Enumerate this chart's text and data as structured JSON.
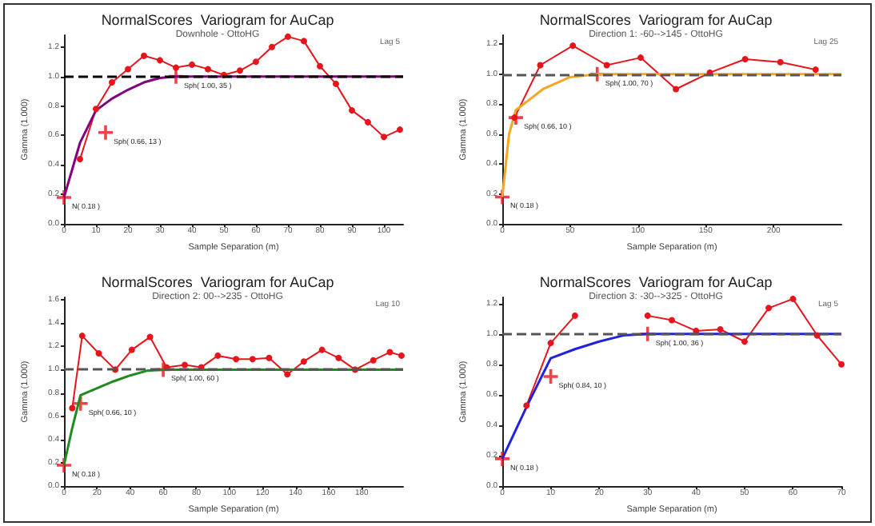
{
  "chart_data": [
    {
      "type": "line",
      "title": "NormalScores  Variogram for AuCap",
      "subtitle": "Downhole - OttoHG",
      "xlabel": "Sample Separation (m)",
      "ylabel": "Gamma (1.000)",
      "xlim": [
        0,
        106
      ],
      "xticks": [
        0,
        10,
        20,
        30,
        40,
        50,
        60,
        70,
        80,
        90,
        100
      ],
      "ylim": [
        0,
        1.28
      ],
      "yticks": [
        {
          "value": 0,
          "label": "0.0"
        },
        {
          "value": 0.2,
          "label": "0.2"
        },
        {
          "value": 0.4,
          "label": "0.4"
        },
        {
          "value": 0.6,
          "label": "0.6"
        },
        {
          "value": 0.8,
          "label": "0.8"
        },
        {
          "value": 1,
          "label": "1.0"
        },
        {
          "value": 1.2,
          "label": "1.2"
        }
      ],
      "grid": false,
      "series": [
        {
          "color": "#e8141c",
          "marker": "circle",
          "line_style": "solid",
          "x": [
            5,
            10,
            15,
            20,
            25,
            30,
            35,
            40,
            45,
            50,
            55,
            60,
            65,
            70,
            75,
            80,
            85,
            90,
            95,
            100,
            105
          ],
          "values": [
            0.44,
            0.78,
            0.96,
            1.05,
            1.14,
            1.11,
            1.06,
            1.08,
            1.05,
            1.01,
            1.04,
            1.1,
            1.2,
            1.27,
            1.24,
            1.07,
            0.95,
            0.77,
            0.69,
            0.59,
            0.64
          ]
        },
        {
          "color": "#800080",
          "marker": "none",
          "line_style": "solid",
          "x": [
            0,
            5,
            10,
            15,
            20,
            25,
            30,
            35,
            106
          ],
          "values": [
            0.18,
            0.55,
            0.77,
            0.85,
            0.91,
            0.96,
            0.99,
            1.0,
            1.0
          ]
        },
        {
          "type": "scatter",
          "color": "#e8141c",
          "marker": "cross",
          "x": [
            0,
            13,
            35
          ],
          "values": [
            0.18,
            0.62,
            1.0
          ]
        }
      ],
      "ref_lines": [
        {
          "axis": "y",
          "value": 1,
          "color": "#000000",
          "line_style": "dashed"
        }
      ],
      "annotations": [
        {
          "text": "N( 0.18 )",
          "x": 0,
          "y": 0.18
        },
        {
          "text": "Sph( 0.66, 13 )",
          "x": 13,
          "y": 0.62
        },
        {
          "text": "Sph( 1.00, 35 )",
          "x": 35,
          "y": 1.0
        },
        "Lag 5"
      ]
    },
    {
      "type": "line",
      "title": "NormalScores  Variogram for AuCap",
      "subtitle": "Direction 1: -60-->145 - OttoHG",
      "xlabel": "Sample Separation (m)",
      "ylabel": "Gamma (1.000)",
      "xlim": [
        0,
        250
      ],
      "xticks": [
        0,
        50,
        100,
        150,
        200
      ],
      "ylim": [
        0,
        1.26
      ],
      "yticks": [
        {
          "value": 0,
          "label": "0.0"
        },
        {
          "value": 0.2,
          "label": "0.2"
        },
        {
          "value": 0.4,
          "label": "0.4"
        },
        {
          "value": 0.6,
          "label": "0.6"
        },
        {
          "value": 0.8,
          "label": "0.8"
        },
        {
          "value": 1,
          "label": "1.0"
        },
        {
          "value": 1.2,
          "label": "1.2"
        }
      ],
      "grid": false,
      "series": [
        {
          "color": "#e8141c",
          "marker": "circle",
          "line_style": "solid",
          "x": [
            9,
            28,
            52,
            77,
            102,
            128,
            153,
            179,
            205,
            231
          ],
          "values": [
            0.71,
            1.06,
            1.19,
            1.06,
            1.11,
            0.9,
            1.01,
            1.1,
            1.08,
            1.03
          ]
        },
        {
          "color": "#f5a623",
          "marker": "none",
          "line_style": "solid",
          "x": [
            0,
            5,
            10,
            20,
            30,
            50,
            70,
            250
          ],
          "values": [
            0.18,
            0.6,
            0.76,
            0.83,
            0.9,
            0.98,
            1.0,
            1.0
          ]
        },
        {
          "type": "scatter",
          "color": "#e8141c",
          "marker": "cross",
          "x": [
            0,
            10,
            70
          ],
          "values": [
            0.18,
            0.71,
            1.0
          ]
        }
      ],
      "ref_lines": [
        {
          "axis": "y",
          "value": 1,
          "color": "#555555",
          "line_style": "dashed"
        }
      ],
      "annotations": [
        {
          "text": "N( 0.18 )",
          "x": 0,
          "y": 0.18
        },
        {
          "text": "Sph( 0.66, 10 )",
          "x": 10,
          "y": 0.71
        },
        {
          "text": "Sph( 1.00, 70 )",
          "x": 70,
          "y": 1.0
        },
        "Lag 25"
      ]
    },
    {
      "type": "line",
      "title": "NormalScores  Variogram for AuCap",
      "subtitle": "Direction 2: 00-->235 - OttoHG",
      "xlabel": "Sample Separation (m)",
      "ylabel": "Gamma (1.000)",
      "xlim": [
        0,
        205
      ],
      "xticks": [
        0,
        20,
        40,
        60,
        80,
        100,
        120,
        140,
        160,
        180
      ],
      "ylim": [
        0,
        1.62
      ],
      "yticks": [
        {
          "value": 0,
          "label": "0.0"
        },
        {
          "value": 0.2,
          "label": "0.2"
        },
        {
          "value": 0.4,
          "label": "0.4"
        },
        {
          "value": 0.6,
          "label": "0.6"
        },
        {
          "value": 0.8,
          "label": "0.8"
        },
        {
          "value": 1,
          "label": "1.0"
        },
        {
          "value": 1.2,
          "label": "1.2"
        },
        {
          "value": 1.4,
          "label": "1.4"
        },
        {
          "value": 1.6,
          "label": "1.6"
        }
      ],
      "grid": false,
      "series": [
        {
          "color": "#e8141c",
          "marker": "circle",
          "line_style": "solid",
          "x": [
            5,
            11,
            21,
            31,
            41,
            52,
            62,
            73,
            83,
            93,
            104,
            114,
            124,
            135,
            145,
            156,
            166,
            176,
            187,
            197,
            204
          ],
          "values": [
            0.67,
            1.29,
            1.14,
            1.0,
            1.17,
            1.28,
            1.02,
            1.04,
            1.02,
            1.12,
            1.09,
            1.09,
            1.1,
            0.96,
            1.07,
            1.17,
            1.1,
            1.0,
            1.08,
            1.15,
            1.12
          ]
        },
        {
          "color": "#1e8c1e",
          "marker": "none",
          "line_style": "solid",
          "x": [
            0,
            5,
            10,
            20,
            30,
            40,
            50,
            60,
            205
          ],
          "values": [
            0.18,
            0.5,
            0.78,
            0.84,
            0.9,
            0.95,
            0.99,
            1.0,
            1.0
          ]
        },
        {
          "type": "scatter",
          "color": "#e8141c",
          "marker": "cross",
          "x": [
            0,
            10,
            60
          ],
          "values": [
            0.18,
            0.71,
            1.0
          ]
        }
      ],
      "ref_lines": [
        {
          "axis": "y",
          "value": 1,
          "color": "#555555",
          "line_style": "dashed"
        }
      ],
      "annotations": [
        {
          "text": "N( 0.18 )",
          "x": 0,
          "y": 0.18
        },
        {
          "text": "Sph( 0.66, 10 )",
          "x": 10,
          "y": 0.71
        },
        {
          "text": "Sph( 1.00, 60 )",
          "x": 60,
          "y": 1.0
        },
        "Lag 10"
      ]
    },
    {
      "type": "line",
      "title": "NormalScores  Variogram for AuCap",
      "subtitle": "Direction 3: -30-->325 - OttoHG",
      "xlabel": "Sample Separation (m)",
      "ylabel": "Gamma (1.000)",
      "xlim": [
        0,
        70
      ],
      "xticks": [
        0,
        10,
        20,
        30,
        40,
        50,
        60,
        70
      ],
      "ylim": [
        0,
        1.24
      ],
      "yticks": [
        {
          "value": 0,
          "label": "0.0"
        },
        {
          "value": 0.2,
          "label": "0.2"
        },
        {
          "value": 0.4,
          "label": "0.4"
        },
        {
          "value": 0.6,
          "label": "0.6"
        },
        {
          "value": 0.8,
          "label": "0.8"
        },
        {
          "value": 1,
          "label": "1.0"
        },
        {
          "value": 1.2,
          "label": "1.2"
        }
      ],
      "grid": false,
      "series": [
        {
          "color": "#e8141c",
          "marker": "circle",
          "line_style": "solid",
          "x": [
            5,
            10,
            15,
            20,
            25,
            30,
            35,
            40,
            45,
            50,
            55,
            60,
            65,
            70
          ],
          "values": [
            0.53,
            0.94,
            1.12,
            null,
            null,
            1.12,
            1.09,
            1.02,
            1.03,
            0.95,
            1.17,
            1.23,
            0.99,
            0.8
          ]
        },
        {
          "color": "#2222dd",
          "marker": "none",
          "line_style": "solid",
          "x": [
            0,
            5,
            10,
            15,
            20,
            25,
            30,
            70
          ],
          "values": [
            0.18,
            0.52,
            0.84,
            0.9,
            0.95,
            0.99,
            1.0,
            1.0
          ]
        },
        {
          "type": "scatter",
          "color": "#e8141c",
          "marker": "cross",
          "x": [
            0,
            10,
            30
          ],
          "values": [
            0.18,
            0.72,
            1.0
          ]
        }
      ],
      "ref_lines": [
        {
          "axis": "y",
          "value": 1,
          "color": "#555555",
          "line_style": "dashed"
        }
      ],
      "annotations": [
        {
          "text": "N( 0.18 )",
          "x": 0,
          "y": 0.18
        },
        {
          "text": "Sph( 0.84, 10 )",
          "x": 10,
          "y": 0.72
        },
        {
          "text": "Sph( 1.00, 36 )",
          "x": 30,
          "y": 1.0
        },
        "Lag 5"
      ]
    }
  ]
}
